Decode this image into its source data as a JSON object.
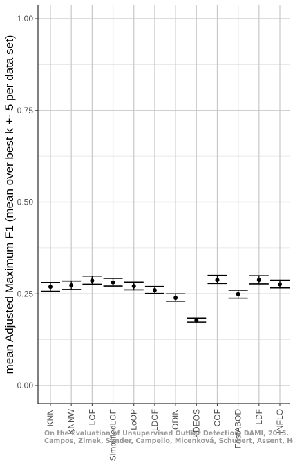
{
  "chart_data": {
    "type": "errorbar",
    "ylabel": "mean Adjusted Maximum F1 (mean over best k +- 5 per data set)",
    "xlabel": "",
    "ylim": [
      0,
      1
    ],
    "yticks": [
      0.0,
      0.25,
      0.5,
      0.75,
      1.0
    ],
    "ytick_labels": [
      "0.00",
      "0.25",
      "0.50",
      "0.75",
      "1.00"
    ],
    "grid": true,
    "categories": [
      "KNN",
      "KNNW",
      "LOF",
      "SimplifiedLOF",
      "LoOP",
      "LDOF",
      "ODIN",
      "KDEOS",
      "COF",
      "FastABOD",
      "LDF",
      "INFLO"
    ],
    "means": [
      0.269,
      0.273,
      0.286,
      0.281,
      0.271,
      0.26,
      0.239,
      0.178,
      0.288,
      0.249,
      0.288,
      0.276
    ],
    "lower": [
      0.257,
      0.262,
      0.276,
      0.271,
      0.261,
      0.251,
      0.23,
      0.173,
      0.278,
      0.238,
      0.277,
      0.266
    ],
    "upper": [
      0.281,
      0.285,
      0.298,
      0.292,
      0.282,
      0.27,
      0.25,
      0.184,
      0.3,
      0.26,
      0.299,
      0.287
    ]
  },
  "watermark": {
    "line1": "On the Evaluation of Unsupervised Outlier Detection, DAMI, 2015.",
    "line2": "Campos, Zimek, Sander, Campello, Micenková, Schubert, Assent, Houle"
  }
}
